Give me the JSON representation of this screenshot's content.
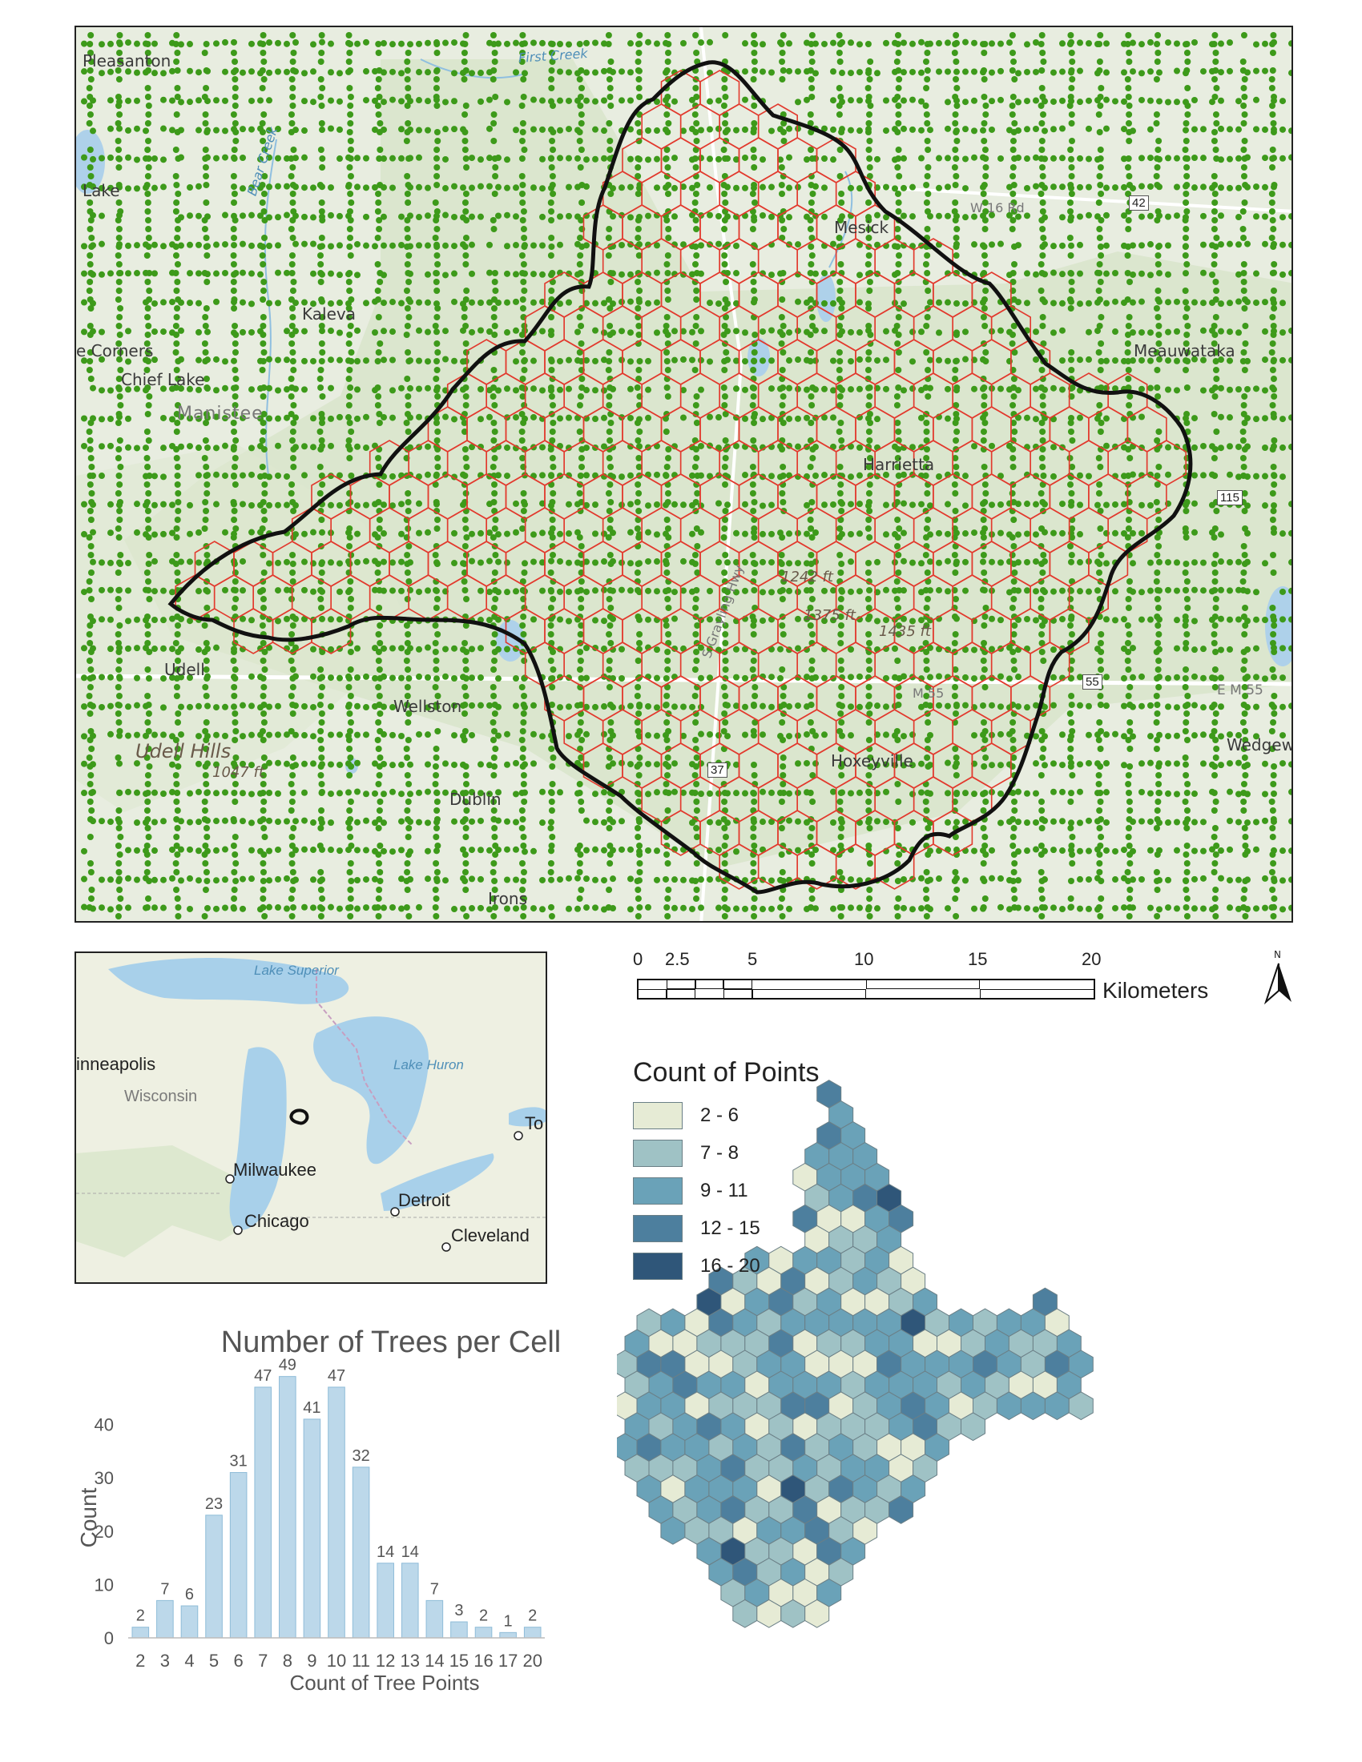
{
  "main_map": {
    "places": [
      {
        "name": "Pleasanton"
      },
      {
        "name": "Lake"
      },
      {
        "name": "Kaleva"
      },
      {
        "name": "e Corners"
      },
      {
        "name": "Chief Lake"
      },
      {
        "name": "Manistee"
      },
      {
        "name": "Mesick"
      },
      {
        "name": "Mesick"
      },
      {
        "name": "Harrietta"
      },
      {
        "name": "Udell"
      },
      {
        "name": "Wellston"
      },
      {
        "name": "Udell Hills"
      },
      {
        "name": "1047 ft"
      },
      {
        "name": "Dublin"
      },
      {
        "name": "Hoxeyville"
      },
      {
        "name": "Irons"
      },
      {
        "name": "Meauwataka"
      },
      {
        "name": "Wedgew"
      },
      {
        "name": "W 16 Rd"
      },
      {
        "name": "E M 55"
      },
      {
        "name": "1242 ft"
      },
      {
        "name": "1375 ft"
      },
      {
        "name": "1435 ft"
      },
      {
        "name": "M 55"
      },
      {
        "name": "S Grayling Hwy"
      },
      {
        "name": "M37"
      }
    ],
    "water_labels": [
      {
        "name": "First Creek"
      },
      {
        "name": "Bear Creek"
      }
    ],
    "shields": [
      "37",
      "55",
      "115",
      "42"
    ]
  },
  "inset_map": {
    "labels": [
      "inneapolis",
      "Wisconsin",
      "Milwaukee",
      "Chicago",
      "Detroit",
      "Cleveland",
      "To"
    ],
    "lakes": [
      "Lake Superior",
      "Lake Huron"
    ]
  },
  "scale_bar": {
    "ticks": [
      "0",
      "2.5",
      "5",
      "10",
      "15",
      "20"
    ],
    "unit": "Kilometers",
    "north": "N"
  },
  "legend": {
    "title": "Count of Points",
    "items": [
      {
        "label": "2 - 6",
        "color": "#e6ebd5"
      },
      {
        "label": "7 - 8",
        "color": "#9fc2c5"
      },
      {
        "label": "9 - 11",
        "color": "#6aa2b8"
      },
      {
        "label": "12 - 15",
        "color": "#4d7f9e"
      },
      {
        "label": "16 - 20",
        "color": "#2f5679"
      }
    ]
  },
  "chart_data": {
    "type": "bar",
    "title": "Number of Trees per Cell",
    "xlabel": "Count of Tree Points",
    "ylabel": "Count",
    "categories": [
      "2",
      "3",
      "4",
      "5",
      "6",
      "7",
      "8",
      "9",
      "10",
      "11",
      "12",
      "13",
      "14",
      "15",
      "16",
      "17",
      "20"
    ],
    "values": [
      2,
      7,
      6,
      23,
      31,
      47,
      49,
      41,
      47,
      32,
      14,
      14,
      7,
      3,
      2,
      1,
      2
    ],
    "yticks": [
      0,
      10,
      20,
      30,
      40
    ],
    "ylim": [
      0,
      50
    ],
    "bar_color": "#bcd8ea",
    "grid": false
  }
}
